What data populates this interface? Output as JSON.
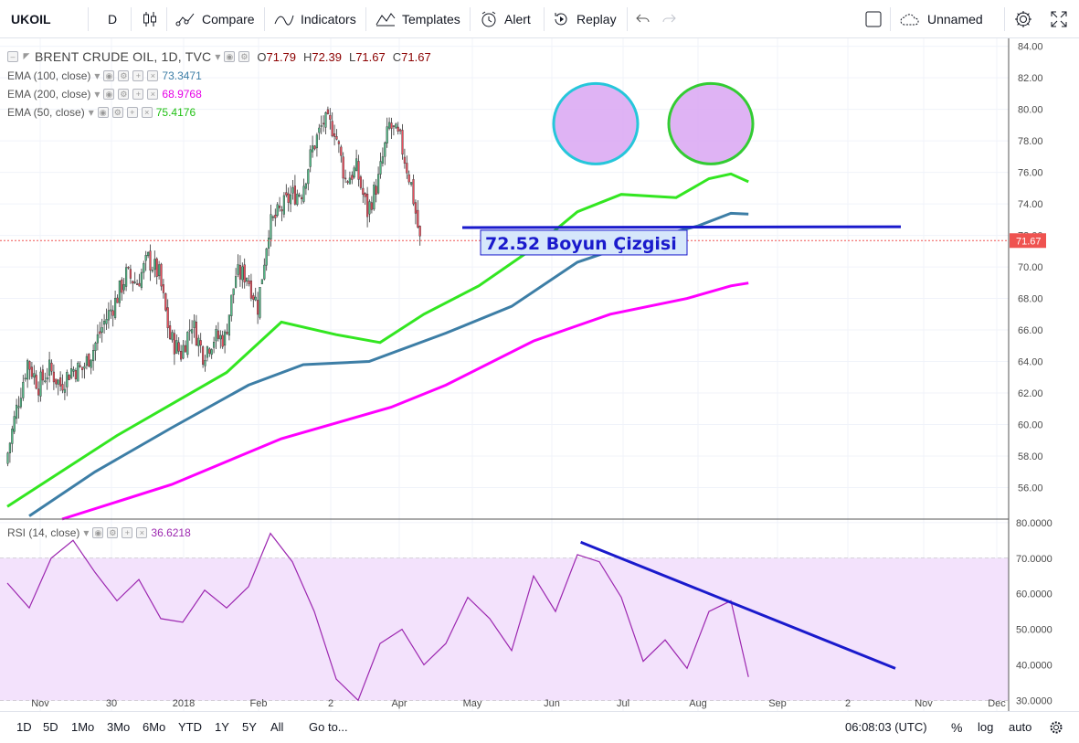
{
  "toolbar": {
    "symbol": "UKOIL",
    "interval": "D",
    "compare": "Compare",
    "indicators": "Indicators",
    "templates": "Templates",
    "alert": "Alert",
    "replay": "Replay",
    "layout_name": "Unnamed"
  },
  "legend": {
    "title": "BRENT CRUDE OIL, 1D, TVC",
    "o": "71.79",
    "h": "72.39",
    "l": "71.67",
    "c": "71.67",
    "ema100_label": "EMA (100, close)",
    "ema100_value": "73.3471",
    "ema200_label": "EMA (200, close)",
    "ema200_value": "68.9768",
    "ema50_label": "EMA (50, close)",
    "ema50_value": "75.4176",
    "rsi_label": "RSI (14, close)",
    "rsi_value": "36.6218"
  },
  "bottombar": {
    "ranges": [
      "1D",
      "5D",
      "1Mo",
      "3Mo",
      "6Mo",
      "YTD",
      "1Y",
      "5Y",
      "All"
    ],
    "goto": "Go to...",
    "clock": "06:08:03 (UTC)",
    "percent": "%",
    "log": "log",
    "auto": "auto"
  },
  "colors": {
    "up": "#53b987",
    "down": "#eb4d5c",
    "ema50": "#33e621",
    "ema100": "#3d7ea6",
    "ema200": "#ff00ff",
    "rsi": "#9c27b0",
    "rsi_band": "#f3e2fc",
    "annotation": "#1a1acc",
    "last_price": "#ef5350"
  },
  "chart_data": [
    {
      "type": "candlestick",
      "title": "BRENT CRUDE OIL, 1D, TVC",
      "ylim": [
        54,
        84.5
      ],
      "y_ticks": [
        "84.00",
        "82.00",
        "80.00",
        "78.00",
        "76.00",
        "74.00",
        "72.00",
        "70.00",
        "68.00",
        "66.00",
        "64.00",
        "62.00",
        "60.00",
        "58.00",
        "56.00"
      ],
      "x_ticks": [
        "Nov",
        "30",
        "2018",
        "Feb",
        "2",
        "Apr",
        "May",
        "Jun",
        "Jul",
        "Aug",
        "Sep",
        "2",
        "Nov",
        "Dec"
      ],
      "last_price": "71.67",
      "ohlc_anchor_close": [
        [
          "Oct 23",
          57.5
        ],
        [
          "Oct 30",
          61.0
        ],
        [
          "Nov 6",
          64.0
        ],
        [
          "Nov 13",
          62.5
        ],
        [
          "Nov 20",
          63.5
        ],
        [
          "Nov 27",
          62.5
        ],
        [
          "Dec 4",
          63.5
        ],
        [
          "Dec 11",
          63.5
        ],
        [
          "Dec 18",
          64.8
        ],
        [
          "Dec 25",
          66.5
        ],
        [
          "Jan 1",
          67.8
        ],
        [
          "Jan 8",
          69.5
        ],
        [
          "Jan 15",
          69.0
        ],
        [
          "Jan 22",
          70.5
        ],
        [
          "Jan 29",
          69.5
        ],
        [
          "Feb 5",
          65.5
        ],
        [
          "Feb 12",
          64.5
        ],
        [
          "Feb 19",
          66.5
        ],
        [
          "Feb 26",
          64.5
        ],
        [
          "Mar 5",
          65.5
        ],
        [
          "Mar 12",
          65.5
        ],
        [
          "Mar 19",
          69.5
        ],
        [
          "Mar 26",
          69.5
        ],
        [
          "Apr 2",
          67.5
        ],
        [
          "Apr 9",
          72.5
        ],
        [
          "Apr 16",
          73.5
        ],
        [
          "Apr 23",
          74.5
        ],
        [
          "Apr 30",
          74.8
        ],
        [
          "May 7",
          77.5
        ],
        [
          "May 14",
          79.2
        ],
        [
          "May 21",
          78.8
        ],
        [
          "May 28",
          75.5
        ],
        [
          "Jun 4",
          76.2
        ],
        [
          "Jun 11",
          73.5
        ],
        [
          "Jun 18",
          75.5
        ],
        [
          "Jun 25",
          79.0
        ],
        [
          "Jul 2",
          78.0
        ],
        [
          "Jul 9",
          75.2
        ],
        [
          "Jul 13",
          71.67
        ]
      ],
      "ema50": [
        [
          0,
          54.8
        ],
        [
          10,
          59.3
        ],
        [
          20,
          63.3
        ],
        [
          25,
          66.5
        ],
        [
          30,
          65.7
        ],
        [
          34,
          65.2
        ],
        [
          38,
          67.0
        ],
        [
          43,
          68.8
        ],
        [
          48,
          71.2
        ],
        [
          52,
          73.5
        ],
        [
          56,
          74.6
        ],
        [
          61,
          74.4
        ],
        [
          64,
          75.6
        ],
        [
          66,
          75.9
        ],
        [
          67.6,
          75.4
        ]
      ],
      "ema100": [
        [
          2,
          54.2
        ],
        [
          8,
          57.0
        ],
        [
          15,
          59.8
        ],
        [
          22,
          62.5
        ],
        [
          27,
          63.8
        ],
        [
          33,
          64.0
        ],
        [
          40,
          65.8
        ],
        [
          46,
          67.5
        ],
        [
          52,
          70.3
        ],
        [
          58,
          71.7
        ],
        [
          63,
          72.6
        ],
        [
          66,
          73.4
        ],
        [
          67.6,
          73.35
        ]
      ],
      "ema200": [
        [
          5,
          54.0
        ],
        [
          15,
          56.2
        ],
        [
          25,
          59.1
        ],
        [
          35,
          61.1
        ],
        [
          40,
          62.5
        ],
        [
          48,
          65.3
        ],
        [
          55,
          67.0
        ],
        [
          62,
          68.0
        ],
        [
          66,
          68.8
        ],
        [
          67.6,
          68.98
        ]
      ],
      "neckline": {
        "label": "72.52 Boyun Çizgisi",
        "x": [
          41.5,
          81.5
        ],
        "y": [
          72.5,
          72.55
        ]
      },
      "tops": [
        {
          "label": "",
          "x": 53.5,
          "y": 79.2
        },
        {
          "label": "",
          "x": 64,
          "y": 79.2
        }
      ]
    },
    {
      "type": "line",
      "title": "RSI (14, close)",
      "ylim": [
        27,
        81
      ],
      "y_ticks": [
        "80.0000",
        "70.0000",
        "60.0000",
        "50.0000",
        "40.0000",
        "30.0000"
      ],
      "band": [
        30,
        70
      ],
      "series": [
        {
          "name": "RSI (14, close)",
          "values": [
            [
              0,
              63
            ],
            [
              2,
              56
            ],
            [
              4,
              70
            ],
            [
              6,
              75
            ],
            [
              8,
              66
            ],
            [
              10,
              58
            ],
            [
              12,
              64
            ],
            [
              14,
              53
            ],
            [
              16,
              52
            ],
            [
              18,
              61
            ],
            [
              20,
              56
            ],
            [
              22,
              62
            ],
            [
              24,
              77
            ],
            [
              26,
              69
            ],
            [
              28,
              55
            ],
            [
              30,
              36
            ],
            [
              32,
              30
            ],
            [
              34,
              46
            ],
            [
              36,
              50
            ],
            [
              38,
              40
            ],
            [
              40,
              46
            ],
            [
              42,
              59
            ],
            [
              44,
              53
            ],
            [
              46,
              44
            ],
            [
              48,
              65
            ],
            [
              50,
              55
            ],
            [
              52,
              71
            ],
            [
              54,
              69
            ],
            [
              56,
              59
            ],
            [
              58,
              41
            ],
            [
              60,
              47
            ],
            [
              62,
              39
            ],
            [
              64,
              55
            ],
            [
              66,
              58
            ],
            [
              67.6,
              36.6
            ]
          ]
        }
      ],
      "trendline": {
        "x": [
          52.3,
          81.0
        ],
        "y": [
          74.5,
          39.0
        ]
      }
    }
  ]
}
